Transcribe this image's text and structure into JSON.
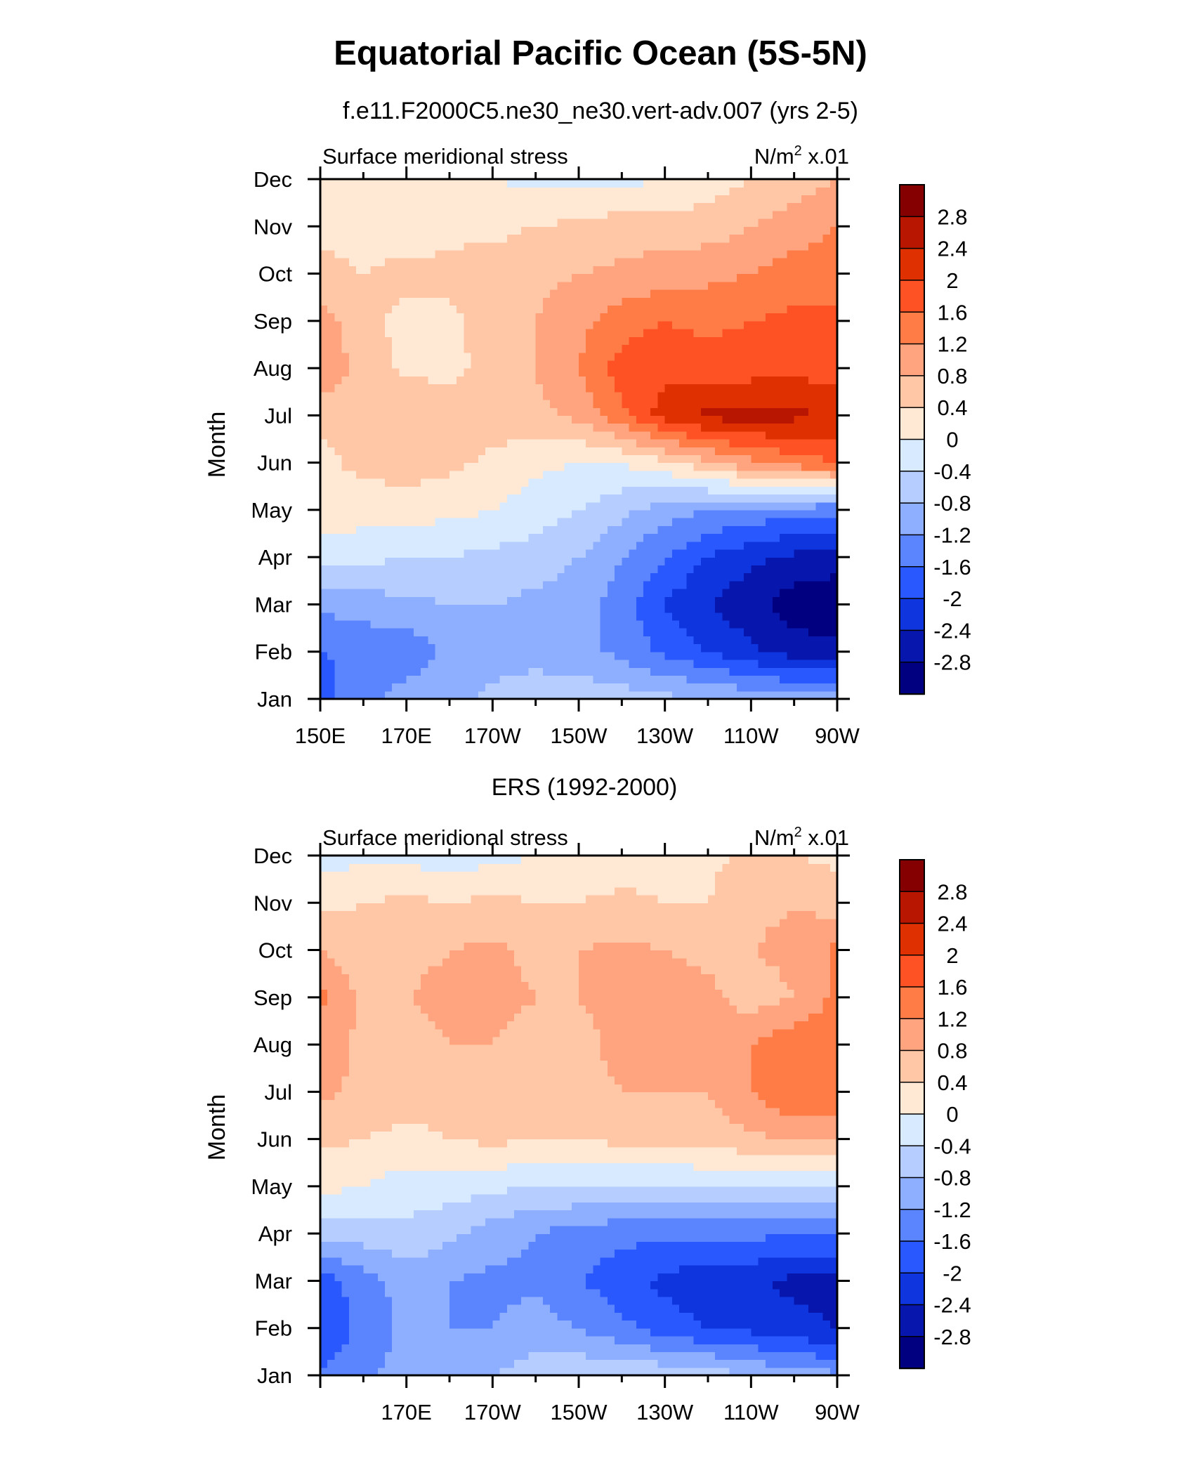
{
  "figure": {
    "title": "Equatorial Pacific Ocean (5S-5N)"
  },
  "colorbar": {
    "levels": [
      "2.8",
      "2.4",
      "2",
      "1.6",
      "1.2",
      "0.8",
      "0.4",
      "0",
      "-0.4",
      "-0.8",
      "-1.2",
      "-1.6",
      "-2",
      "-2.4",
      "-2.8"
    ],
    "colors": [
      "#850000",
      "#b81600",
      "#de3000",
      "#ff5224",
      "#ff7c47",
      "#ffa47e",
      "#ffc7a6",
      "#ffe8d4",
      "#d7eaff",
      "#b5cdff",
      "#8eaeff",
      "#5b84ff",
      "#2a58ff",
      "#0f35de",
      "#0716ad",
      "#000080"
    ]
  },
  "chart_data": [
    {
      "type": "heatmap",
      "subtitle": "f.e11.F2000C5.ne30_ne30.vert-adv.007 (yrs 2-5)",
      "left_label": "Surface meridional stress",
      "right_label": "N/m",
      "right_label_sup": "2",
      "right_label_suffix": " x.01",
      "ylabel": "Month",
      "x_ticks": [
        "150E",
        "170E",
        "170W",
        "150W",
        "130W",
        "110W",
        "90W"
      ],
      "y_ticks": [
        "Jan",
        "Feb",
        "Mar",
        "Apr",
        "May",
        "Jun",
        "Jul",
        "Aug",
        "Sep",
        "Oct",
        "Nov",
        "Dec"
      ],
      "x_range_deg_east": [
        150,
        270
      ],
      "x": [
        150,
        160,
        170,
        180,
        190,
        200,
        210,
        220,
        230,
        240,
        250,
        260,
        270
      ],
      "y": [
        "Jan",
        "Feb",
        "Mar",
        "Apr",
        "May",
        "Jun",
        "Jul",
        "Aug",
        "Sep",
        "Oct",
        "Nov",
        "Dec"
      ],
      "z": [
        [
          -1.8,
          -1.3,
          -1.0,
          -0.9,
          -0.7,
          -0.5,
          -0.5,
          -0.6,
          -0.7,
          -0.8,
          -0.9,
          -1.0,
          -1.0
        ],
        [
          -1.6,
          -1.5,
          -1.5,
          -1.1,
          -1.0,
          -1.0,
          -1.1,
          -1.3,
          -1.7,
          -2.0,
          -2.3,
          -2.6,
          -2.7
        ],
        [
          -1.1,
          -1.0,
          -0.9,
          -0.8,
          -0.8,
          -0.9,
          -1.0,
          -1.4,
          -2.0,
          -2.4,
          -2.7,
          -3.0,
          -3.1
        ],
        [
          -0.3,
          -0.3,
          -0.4,
          -0.4,
          -0.5,
          -0.6,
          -0.8,
          -1.2,
          -1.6,
          -2.0,
          -2.3,
          -2.5,
          -2.6
        ],
        [
          0.3,
          0.2,
          0.2,
          0.1,
          0.0,
          -0.2,
          -0.4,
          -0.7,
          -1.0,
          -1.2,
          -1.3,
          -1.4,
          -1.5
        ],
        [
          0.3,
          0.5,
          0.6,
          0.5,
          0.3,
          0.1,
          0.0,
          0.0,
          0.3,
          0.7,
          1.1,
          1.4,
          1.6
        ],
        [
          0.5,
          0.7,
          0.8,
          0.6,
          0.6,
          0.7,
          0.9,
          1.5,
          2.2,
          2.5,
          2.6,
          2.5,
          2.3
        ],
        [
          1.2,
          0.6,
          0.3,
          0.3,
          0.5,
          0.8,
          1.2,
          1.8,
          1.9,
          1.8,
          1.8,
          1.9,
          1.8
        ],
        [
          1.0,
          0.5,
          0.3,
          0.3,
          0.6,
          0.8,
          1.1,
          1.4,
          1.6,
          1.5,
          1.6,
          1.7,
          1.7
        ],
        [
          0.5,
          0.4,
          0.5,
          0.5,
          0.6,
          0.7,
          0.8,
          0.9,
          1.0,
          1.1,
          1.2,
          1.4,
          1.4
        ],
        [
          0.3,
          0.3,
          0.2,
          0.3,
          0.3,
          0.4,
          0.5,
          0.6,
          0.6,
          0.6,
          0.8,
          1.0,
          1.2
        ],
        [
          0.1,
          0.1,
          0.1,
          0.1,
          0.0,
          -0.1,
          -0.1,
          -0.1,
          0.0,
          0.2,
          0.4,
          0.6,
          0.8
        ]
      ]
    },
    {
      "type": "heatmap",
      "subtitle": "ERS (1992-2000)",
      "left_label": "Surface meridional stress",
      "right_label": "N/m",
      "right_label_sup": "2",
      "right_label_suffix": " x.01",
      "ylabel": "Month",
      "x_ticks": [
        "170E",
        "170W",
        "150W",
        "130W",
        "110W",
        "90W"
      ],
      "y_ticks": [
        "Jan",
        "Feb",
        "Mar",
        "Apr",
        "May",
        "Jun",
        "Jul",
        "Aug",
        "Sep",
        "Oct",
        "Nov",
        "Dec"
      ],
      "x_range_deg_east": [
        150,
        270
      ],
      "x": [
        150,
        160,
        170,
        180,
        190,
        200,
        210,
        220,
        230,
        240,
        250,
        260,
        270
      ],
      "y": [
        "Jan",
        "Feb",
        "Mar",
        "Apr",
        "May",
        "Jun",
        "Jul",
        "Aug",
        "Sep",
        "Oct",
        "Nov",
        "Dec"
      ],
      "z": [
        [
          -1.6,
          -1.3,
          -1.0,
          -0.9,
          -0.8,
          -0.6,
          -0.5,
          -0.4,
          -0.5,
          -0.6,
          -0.8,
          -1.0,
          -1.1
        ],
        [
          -1.9,
          -1.5,
          -1.1,
          -1.2,
          -1.2,
          -1.0,
          -1.2,
          -1.5,
          -1.8,
          -2.0,
          -2.1,
          -2.3,
          -2.4
        ],
        [
          -1.8,
          -1.4,
          -1.0,
          -1.2,
          -1.3,
          -1.3,
          -1.6,
          -1.8,
          -2.1,
          -2.3,
          -2.3,
          -2.5,
          -2.5
        ],
        [
          -0.6,
          -0.6,
          -0.5,
          -0.7,
          -1.0,
          -1.2,
          -1.4,
          -1.5,
          -1.5,
          -1.5,
          -1.5,
          -1.6,
          -1.6
        ],
        [
          0.1,
          0.0,
          -0.2,
          -0.2,
          -0.3,
          -0.4,
          -0.4,
          -0.4,
          -0.4,
          -0.4,
          -0.4,
          -0.4,
          -0.5
        ],
        [
          0.5,
          0.4,
          0.3,
          0.4,
          0.5,
          0.4,
          0.4,
          0.5,
          0.5,
          0.6,
          0.7,
          0.9,
          0.9
        ],
        [
          0.9,
          0.7,
          0.6,
          0.5,
          0.6,
          0.6,
          0.7,
          0.8,
          0.8,
          0.8,
          1.2,
          1.6,
          1.6
        ],
        [
          1.0,
          0.7,
          0.7,
          0.8,
          0.8,
          0.7,
          0.7,
          0.9,
          0.9,
          1.1,
          1.2,
          1.5,
          1.5
        ],
        [
          1.3,
          0.7,
          0.8,
          0.9,
          0.9,
          0.8,
          0.8,
          0.9,
          1.0,
          0.9,
          0.6,
          0.8,
          1.3
        ],
        [
          0.8,
          0.6,
          0.7,
          0.8,
          0.9,
          0.7,
          0.8,
          0.9,
          0.8,
          0.7,
          0.8,
          0.9,
          1.3
        ],
        [
          0.3,
          0.4,
          0.5,
          0.4,
          0.5,
          0.4,
          0.4,
          0.5,
          0.4,
          0.4,
          0.7,
          0.8,
          0.6
        ],
        [
          -0.2,
          -0.1,
          -0.1,
          -0.3,
          -0.1,
          0.0,
          0.1,
          0.2,
          0.2,
          0.3,
          0.5,
          0.4,
          0.3
        ]
      ]
    }
  ]
}
